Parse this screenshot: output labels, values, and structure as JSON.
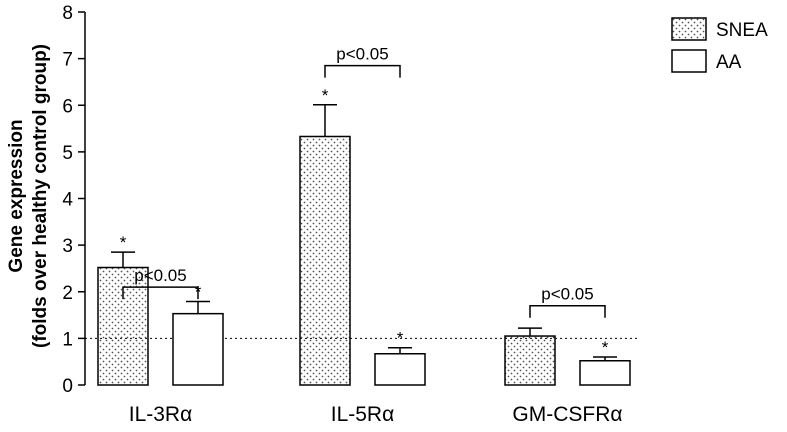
{
  "chart_data": {
    "type": "bar",
    "ylabel": [
      "Gene expression",
      "(folds over healthy control group)"
    ],
    "ylim": [
      0,
      8
    ],
    "yticks": [
      0,
      1,
      2,
      3,
      4,
      5,
      6,
      7,
      8
    ],
    "categories": [
      "IL-3Rα",
      "IL-5Rα",
      "GM-CSFRα"
    ],
    "reference_line": 1,
    "legend_position": "top-right",
    "series": [
      {
        "name": "SNEA",
        "pattern": "dotted",
        "values": [
          2.52,
          5.33,
          1.05
        ],
        "errors": [
          0.33,
          0.68,
          0.17
        ],
        "significance": [
          "*",
          "*",
          ""
        ]
      },
      {
        "name": "AA",
        "pattern": "none",
        "values": [
          1.53,
          0.67,
          0.52
        ],
        "errors": [
          0.26,
          0.13,
          0.08
        ],
        "significance": [
          "*",
          "*",
          "*"
        ]
      }
    ],
    "annotations": [
      {
        "category_index": 0,
        "text": "p<0.05",
        "bracket_y": 2.1
      },
      {
        "category_index": 1,
        "text": "p<0.05",
        "bracket_y": 6.85
      },
      {
        "category_index": 2,
        "text": "p<0.05",
        "bracket_y": 1.7
      }
    ],
    "colors": {
      "axis": "#000000",
      "bar_fill": "#ffffff",
      "dot": "#555555"
    }
  }
}
